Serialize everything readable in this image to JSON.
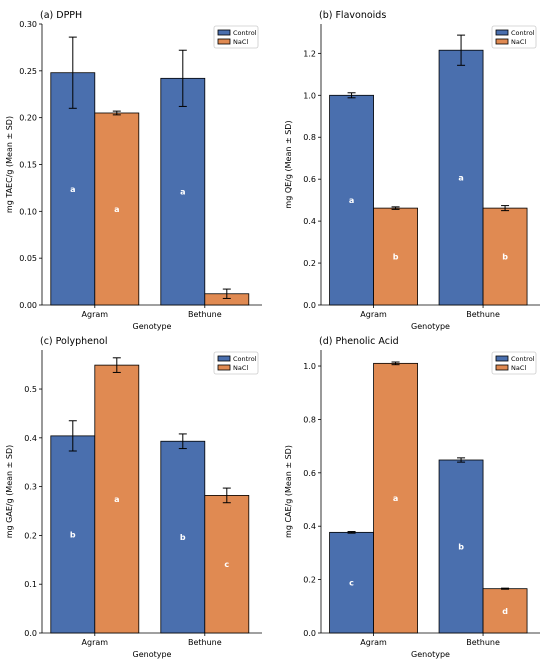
{
  "chart_data": [
    {
      "type": "bar",
      "title": "(a) DPPH",
      "xlabel": "Genotype",
      "ylabel": "mg TAEC/g (Mean ± SD)",
      "categories": [
        "Agram",
        "Bethune"
      ],
      "ylim": [
        0,
        0.3
      ],
      "yticks": [
        "0.00",
        "0.05",
        "0.10",
        "0.15",
        "0.20",
        "0.25",
        "0.30"
      ],
      "legend": "top-right",
      "grid": false,
      "series": [
        {
          "name": "Control",
          "values": [
            0.248,
            0.242
          ],
          "errors": [
            0.038,
            0.03
          ],
          "letters": [
            "a",
            "a"
          ]
        },
        {
          "name": "NaCl",
          "values": [
            0.205,
            0.012
          ],
          "errors": [
            0.002,
            0.005
          ],
          "letters": [
            "a",
            ""
          ]
        }
      ]
    },
    {
      "type": "bar",
      "title": "(b) Flavonoids",
      "xlabel": "Genotype",
      "ylabel": "mg QE/g (Mean ± SD)",
      "categories": [
        "Agram",
        "Bethune"
      ],
      "ylim": [
        0,
        1.34
      ],
      "yticks": [
        "0.0",
        "0.2",
        "0.4",
        "0.6",
        "0.8",
        "1.0",
        "1.2"
      ],
      "legend": "top-right",
      "grid": false,
      "series": [
        {
          "name": "Control",
          "values": [
            1.0,
            1.215
          ],
          "errors": [
            0.012,
            0.072
          ],
          "letters": [
            "a",
            "a"
          ]
        },
        {
          "name": "NaCl",
          "values": [
            0.462,
            0.462
          ],
          "errors": [
            0.006,
            0.012
          ],
          "letters": [
            "b",
            "b"
          ]
        }
      ]
    },
    {
      "type": "bar",
      "title": "(c) Polyphenol",
      "xlabel": "Genotype",
      "ylabel": "mg GAE/g (Mean ± SD)",
      "categories": [
        "Agram",
        "Bethune"
      ],
      "ylim": [
        0,
        0.58
      ],
      "yticks": [
        "0.0",
        "0.1",
        "0.2",
        "0.3",
        "0.4",
        "0.5"
      ],
      "legend": "top-right",
      "grid": false,
      "series": [
        {
          "name": "Control",
          "values": [
            0.404,
            0.393
          ],
          "errors": [
            0.031,
            0.015
          ],
          "letters": [
            "b",
            "b"
          ]
        },
        {
          "name": "NaCl",
          "values": [
            0.549,
            0.282
          ],
          "errors": [
            0.015,
            0.015
          ],
          "letters": [
            "a",
            "c"
          ]
        }
      ]
    },
    {
      "type": "bar",
      "title": "(d) Phenolic Acid",
      "xlabel": "Genotype",
      "ylabel": "mg CAE/g (Mean ± SD)",
      "categories": [
        "Agram",
        "Bethune"
      ],
      "ylim": [
        0,
        1.06
      ],
      "yticks": [
        "0.0",
        "0.2",
        "0.4",
        "0.6",
        "0.8",
        "1.0"
      ],
      "legend": "top-right",
      "grid": false,
      "series": [
        {
          "name": "Control",
          "values": [
            0.377,
            0.648
          ],
          "errors": [
            0.003,
            0.008
          ],
          "letters": [
            "c",
            "b"
          ]
        },
        {
          "name": "NaCl",
          "values": [
            1.01,
            0.166
          ],
          "errors": [
            0.005,
            0.002
          ],
          "letters": [
            "a",
            "d"
          ]
        }
      ]
    }
  ],
  "colors": {
    "control": "#4a6fae",
    "nacl": "#e08a52"
  }
}
